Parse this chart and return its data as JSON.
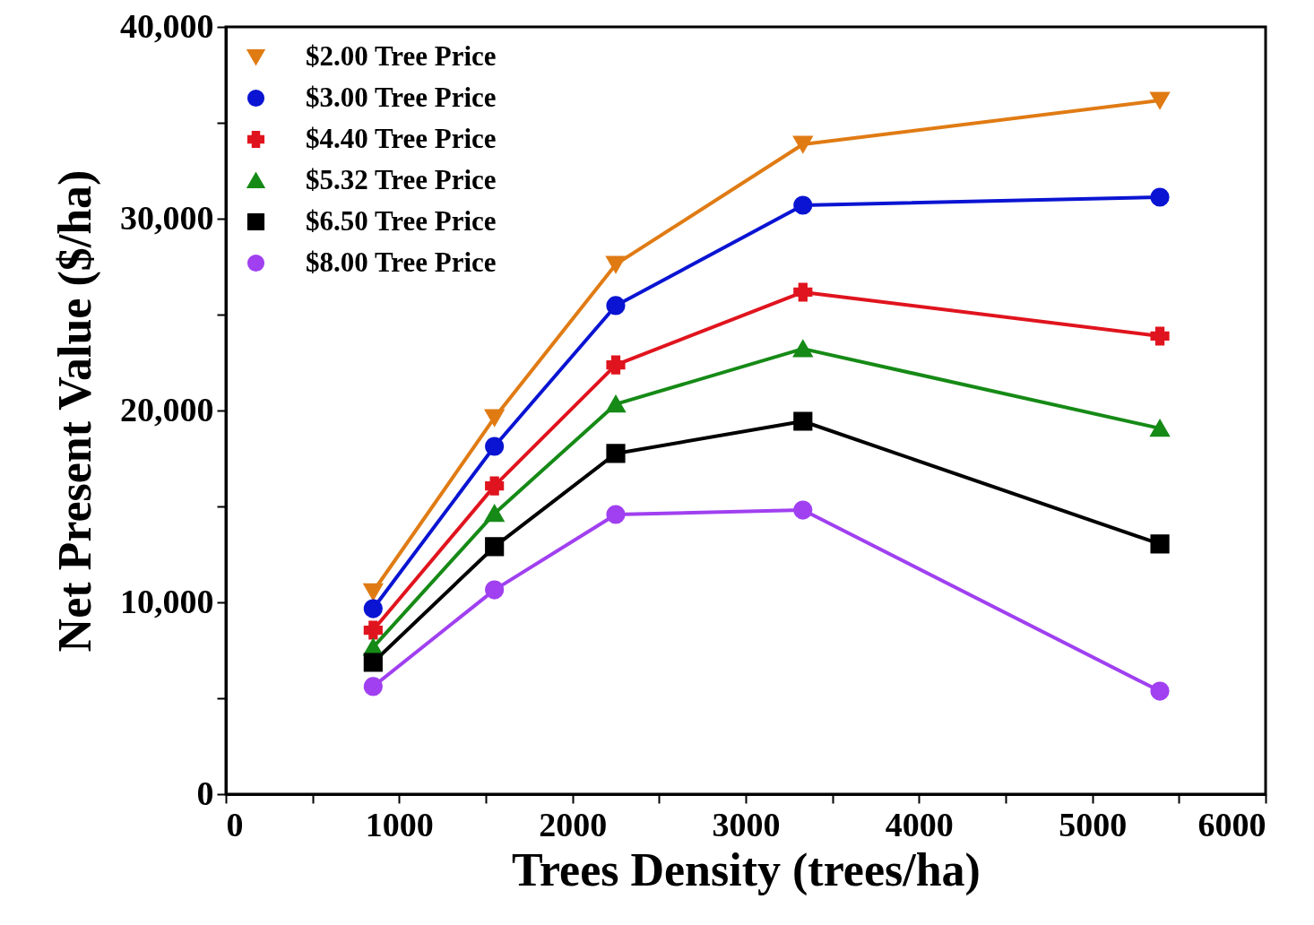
{
  "chart_data": {
    "type": "line",
    "xlabel": "Trees Density (trees/ha)",
    "ylabel": "Net Present Value ($/ha)",
    "x": [
      850,
      1550,
      2250,
      3330,
      5390
    ],
    "xlim": [
      0,
      6000
    ],
    "xticks": [
      0,
      {
        "value": 500,
        "label": null
      },
      1000,
      {
        "value": 1500,
        "label": null
      },
      2000,
      {
        "value": 2500,
        "label": null
      },
      3000,
      {
        "value": 3500,
        "label": null
      },
      4000,
      {
        "value": 4500,
        "label": null
      },
      5000,
      {
        "value": 5500,
        "label": null
      },
      6000
    ],
    "ylim": [
      0,
      40000
    ],
    "yticks": [
      {
        "value": 0,
        "label": "0"
      },
      {
        "value": 5000,
        "label": null
      },
      {
        "value": 10000,
        "label": "10,000"
      },
      {
        "value": 15000,
        "label": null
      },
      {
        "value": 20000,
        "label": "20,000"
      },
      {
        "value": 25000,
        "label": null
      },
      {
        "value": 30000,
        "label": "30,000"
      },
      {
        "value": 35000,
        "label": null
      },
      {
        "value": 40000,
        "label": "40,000"
      }
    ],
    "grid": false,
    "legend": "top left",
    "series": [
      {
        "name": "$2.00 Tree Price",
        "color": "#e07b14",
        "marker": "triangle-down",
        "values": [
          10560,
          19630,
          27620,
          33880,
          36170
        ]
      },
      {
        "name": "$3.00 Tree Price",
        "color": "#0a14d2",
        "marker": "circle",
        "values": [
          9670,
          18130,
          25470,
          30700,
          31120
        ]
      },
      {
        "name": "$4.40 Tree Price",
        "color": "#e0141e",
        "marker": "cross",
        "values": [
          8550,
          16070,
          22380,
          26170,
          23880
        ]
      },
      {
        "name": "$5.32 Tree Price",
        "color": "#168a16",
        "marker": "triangle",
        "values": [
          7660,
          14630,
          20330,
          23220,
          19070
        ]
      },
      {
        "name": "$6.50 Tree Price",
        "color": "#000000",
        "marker": "square",
        "values": [
          6870,
          12900,
          17760,
          19440,
          13040
        ]
      },
      {
        "name": "$8.00 Tree Price",
        "color": "#a040f0",
        "marker": "circle",
        "values": [
          5610,
          10650,
          14580,
          14810,
          5370
        ]
      }
    ]
  }
}
